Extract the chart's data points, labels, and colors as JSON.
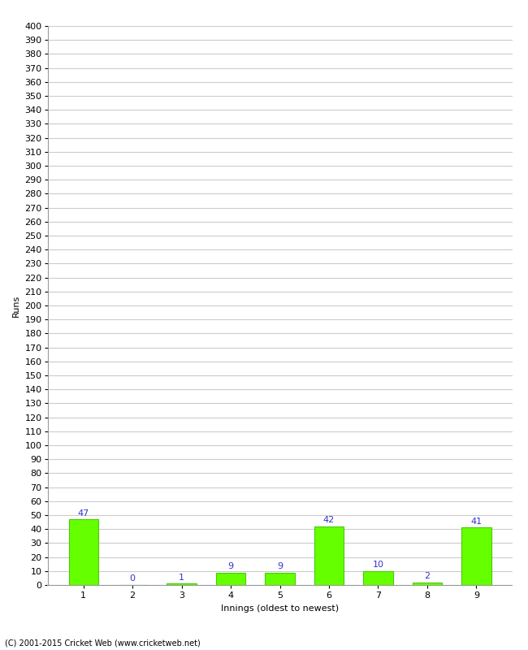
{
  "categories": [
    1,
    2,
    3,
    4,
    5,
    6,
    7,
    8,
    9
  ],
  "values": [
    47,
    0,
    1,
    9,
    9,
    42,
    10,
    2,
    41
  ],
  "bar_color": "#66ff00",
  "bar_edge_color": "#44cc00",
  "ylabel": "Runs",
  "xlabel": "Innings (oldest to newest)",
  "ylim_min": 0,
  "ylim_max": 400,
  "ytick_step": 10,
  "value_label_color": "#3333cc",
  "background_color": "#ffffff",
  "grid_color": "#cccccc",
  "footer_text": "(C) 2001-2015 Cricket Web (www.cricketweb.net)",
  "tick_fontsize": 8,
  "label_fontsize": 8,
  "value_label_fontsize": 8
}
